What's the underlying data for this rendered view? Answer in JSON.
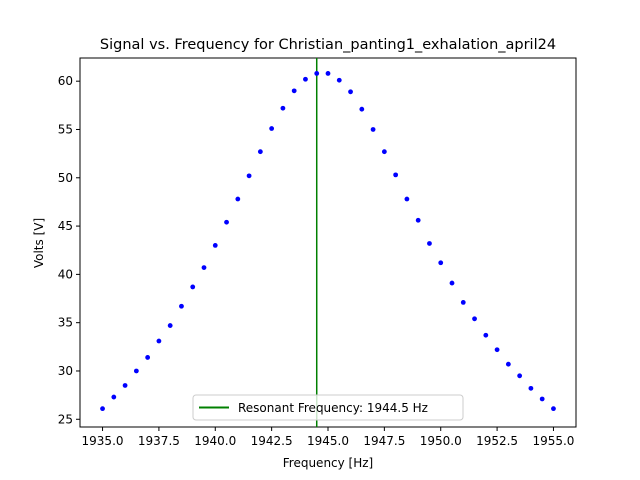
{
  "chart_data": {
    "type": "scatter",
    "title": "Signal vs. Frequency for Christian_panting1_exhalation_april24",
    "xlabel": "Frequency [Hz]",
    "ylabel": "Volts [V]",
    "xlim": [
      1934.0,
      1956.0
    ],
    "ylim": [
      24.2,
      62.4
    ],
    "xticks": [
      1935.0,
      1937.5,
      1940.0,
      1942.5,
      1945.0,
      1947.5,
      1950.0,
      1952.5,
      1955.0
    ],
    "xtick_labels": [
      "1935.0",
      "1937.5",
      "1940.0",
      "1942.5",
      "1945.0",
      "1947.5",
      "1950.0",
      "1952.5",
      "1955.0"
    ],
    "yticks": [
      25,
      30,
      35,
      40,
      45,
      50,
      55,
      60
    ],
    "ytick_labels": [
      "25",
      "30",
      "35",
      "40",
      "45",
      "50",
      "55",
      "60"
    ],
    "grid": false,
    "legend_position": "lower center",
    "series": [
      {
        "color": "#0000ff",
        "x": [
          1935.0,
          1935.5,
          1936.0,
          1936.5,
          1937.0,
          1937.5,
          1938.0,
          1938.5,
          1939.0,
          1939.5,
          1940.0,
          1940.5,
          1941.0,
          1941.5,
          1942.0,
          1942.5,
          1943.0,
          1943.5,
          1944.0,
          1944.5,
          1945.0,
          1945.5,
          1946.0,
          1946.5,
          1947.0,
          1947.5,
          1948.0,
          1948.5,
          1949.0,
          1949.5,
          1950.0,
          1950.5,
          1951.0,
          1951.5,
          1952.0,
          1952.5,
          1953.0,
          1953.5,
          1954.0,
          1954.5,
          1955.0
        ],
        "y": [
          26.1,
          27.3,
          28.5,
          30.0,
          31.4,
          33.1,
          34.7,
          36.7,
          38.7,
          40.7,
          43.0,
          45.4,
          47.8,
          50.2,
          52.7,
          55.1,
          57.2,
          59.0,
          60.2,
          60.8,
          60.8,
          60.1,
          58.9,
          57.1,
          55.0,
          52.7,
          50.3,
          47.8,
          45.6,
          43.2,
          41.2,
          39.1,
          37.1,
          35.4,
          33.7,
          32.2,
          30.7,
          29.5,
          28.2,
          27.1,
          26.1
        ]
      }
    ],
    "vline": {
      "x": 1944.5,
      "color": "#008000",
      "label": "Resonant Frequency: 1944.5 Hz"
    }
  }
}
